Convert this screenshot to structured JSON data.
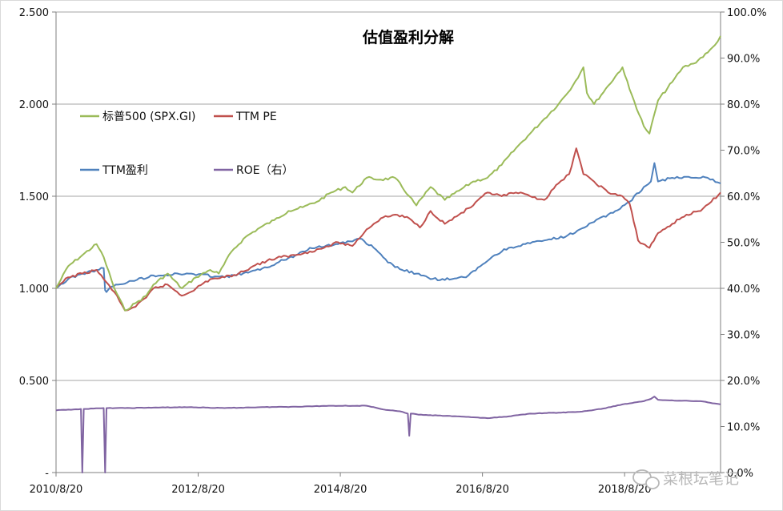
{
  "chart_data": {
    "type": "line",
    "title": "估值盈利分解",
    "x_ticks": [
      "2010/8/20",
      "2012/8/20",
      "2014/8/20",
      "2016/8/20",
      "2018/8/20"
    ],
    "x_tick_years": [
      2010.63,
      2012.63,
      2014.63,
      2016.63,
      2018.63
    ],
    "xlim": [
      2010.63,
      2019.98
    ],
    "ylim_left": [
      0,
      2.5
    ],
    "ylim_right": [
      0,
      1.0
    ],
    "y_ticks_left": [
      "-",
      "0.500",
      "1.000",
      "1.500",
      "2.000",
      "2.500"
    ],
    "y_ticks_left_values": [
      0,
      0.5,
      1.0,
      1.5,
      2.0,
      2.5
    ],
    "y_ticks_right": [
      "0.0%",
      "10.0%",
      "20.0%",
      "30.0%",
      "40.0%",
      "50.0%",
      "60.0%",
      "70.0%",
      "80.0%",
      "90.0%",
      "100.0%"
    ],
    "y_ticks_right_values": [
      0,
      0.1,
      0.2,
      0.3,
      0.4,
      0.5,
      0.6,
      0.7,
      0.8,
      0.9,
      1.0
    ],
    "grid_y": true,
    "legend_placement": "top-left",
    "series": [
      {
        "name": "标普500 (SPX.GI)",
        "color": "#9bbb59",
        "axis": "left",
        "x": [
          2010.63,
          2010.8,
          2011.0,
          2011.2,
          2011.3,
          2011.45,
          2011.6,
          2011.75,
          2011.9,
          2012.0,
          2012.2,
          2012.4,
          2012.6,
          2012.8,
          2012.92,
          2013.1,
          2013.3,
          2013.5,
          2013.7,
          2013.9,
          2014.1,
          2014.3,
          2014.5,
          2014.7,
          2014.8,
          2015.0,
          2015.2,
          2015.4,
          2015.6,
          2015.7,
          2015.9,
          2016.1,
          2016.3,
          2016.5,
          2016.7,
          2016.9,
          2017.1,
          2017.3,
          2017.5,
          2017.7,
          2017.9,
          2018.05,
          2018.1,
          2018.2,
          2018.4,
          2018.6,
          2018.7,
          2018.9,
          2018.98,
          2019.1,
          2019.3,
          2019.45,
          2019.6,
          2019.8,
          2019.9,
          2019.98
        ],
        "y": [
          1.0,
          1.12,
          1.18,
          1.24,
          1.17,
          1.0,
          0.88,
          0.92,
          0.96,
          1.02,
          1.08,
          1.0,
          1.06,
          1.1,
          1.08,
          1.2,
          1.28,
          1.33,
          1.37,
          1.42,
          1.44,
          1.47,
          1.52,
          1.55,
          1.52,
          1.6,
          1.59,
          1.6,
          1.5,
          1.45,
          1.55,
          1.48,
          1.53,
          1.58,
          1.6,
          1.67,
          1.76,
          1.84,
          1.92,
          2.0,
          2.1,
          2.2,
          2.06,
          2.0,
          2.1,
          2.2,
          2.08,
          1.88,
          1.84,
          2.02,
          2.12,
          2.2,
          2.22,
          2.28,
          2.32,
          2.37
        ]
      },
      {
        "name": "TTM PE",
        "color": "#c0504d",
        "axis": "left",
        "x": [
          2010.63,
          2010.8,
          2011.0,
          2011.2,
          2011.3,
          2011.45,
          2011.6,
          2011.75,
          2011.9,
          2012.0,
          2012.2,
          2012.4,
          2012.6,
          2012.8,
          2013.0,
          2013.2,
          2013.4,
          2013.6,
          2013.8,
          2014.0,
          2014.2,
          2014.4,
          2014.6,
          2014.8,
          2015.0,
          2015.2,
          2015.4,
          2015.6,
          2015.75,
          2015.9,
          2016.1,
          2016.3,
          2016.5,
          2016.7,
          2016.9,
          2017.1,
          2017.3,
          2017.5,
          2017.7,
          2017.85,
          2017.95,
          2018.05,
          2018.2,
          2018.4,
          2018.6,
          2018.7,
          2018.82,
          2018.98,
          2019.1,
          2019.3,
          2019.5,
          2019.7,
          2019.85,
          2019.98
        ],
        "y": [
          1.0,
          1.06,
          1.08,
          1.1,
          1.05,
          0.98,
          0.88,
          0.9,
          0.95,
          1.0,
          1.02,
          0.96,
          1.0,
          1.05,
          1.06,
          1.08,
          1.12,
          1.15,
          1.17,
          1.18,
          1.2,
          1.22,
          1.25,
          1.23,
          1.32,
          1.38,
          1.4,
          1.38,
          1.33,
          1.42,
          1.35,
          1.4,
          1.45,
          1.52,
          1.5,
          1.52,
          1.5,
          1.48,
          1.57,
          1.62,
          1.76,
          1.62,
          1.58,
          1.52,
          1.5,
          1.46,
          1.26,
          1.22,
          1.3,
          1.35,
          1.4,
          1.42,
          1.47,
          1.52
        ]
      },
      {
        "name": "TTM盈利",
        "color": "#4f81bd",
        "axis": "left",
        "x": [
          2010.63,
          2010.8,
          2011.0,
          2011.2,
          2011.3,
          2011.32,
          2011.34,
          2011.36,
          2011.38,
          2011.5,
          2011.7,
          2012.0,
          2012.5,
          2013.0,
          2013.5,
          2014.0,
          2014.2,
          2014.6,
          2014.9,
          2015.1,
          2015.3,
          2015.5,
          2015.7,
          2015.9,
          2016.2,
          2016.4,
          2016.6,
          2016.8,
          2017.0,
          2017.5,
          2017.8,
          2018.0,
          2018.2,
          2018.5,
          2018.7,
          2018.9,
          2019.0,
          2019.05,
          2019.1,
          2019.3,
          2019.6,
          2019.8,
          2019.98
        ],
        "y": [
          1.0,
          1.05,
          1.08,
          1.1,
          1.11,
          0.99,
          0.98,
          0.99,
          1.0,
          1.02,
          1.04,
          1.07,
          1.08,
          1.06,
          1.1,
          1.18,
          1.22,
          1.24,
          1.27,
          1.22,
          1.14,
          1.1,
          1.08,
          1.05,
          1.05,
          1.06,
          1.12,
          1.18,
          1.22,
          1.26,
          1.28,
          1.32,
          1.36,
          1.42,
          1.47,
          1.55,
          1.58,
          1.68,
          1.58,
          1.6,
          1.6,
          1.6,
          1.57
        ]
      },
      {
        "name": "ROE（右）",
        "color": "#8064a2",
        "axis": "right",
        "x": [
          2010.63,
          2010.98,
          2011.0,
          2011.02,
          2011.05,
          2011.3,
          2011.32,
          2011.34,
          2011.36,
          2011.6,
          2012.0,
          2012.5,
          2013.0,
          2013.5,
          2014.0,
          2014.5,
          2015.0,
          2015.2,
          2015.5,
          2015.58,
          2015.6,
          2015.62,
          2015.8,
          2016.3,
          2016.7,
          2017.0,
          2017.3,
          2017.7,
          2018.0,
          2018.3,
          2018.6,
          2018.9,
          2019.0,
          2019.05,
          2019.1,
          2019.4,
          2019.7,
          2019.9,
          2019.98
        ],
        "y": [
          0.135,
          0.138,
          0.0,
          0.138,
          0.138,
          0.14,
          0.0,
          0.14,
          0.14,
          0.14,
          0.141,
          0.142,
          0.14,
          0.142,
          0.143,
          0.145,
          0.145,
          0.138,
          0.132,
          0.128,
          0.08,
          0.128,
          0.125,
          0.122,
          0.118,
          0.122,
          0.128,
          0.13,
          0.132,
          0.138,
          0.148,
          0.155,
          0.16,
          0.165,
          0.158,
          0.156,
          0.155,
          0.15,
          0.148
        ]
      }
    ]
  },
  "watermark": {
    "icon": "wechat-icon",
    "text": "菜根坛笔记"
  }
}
